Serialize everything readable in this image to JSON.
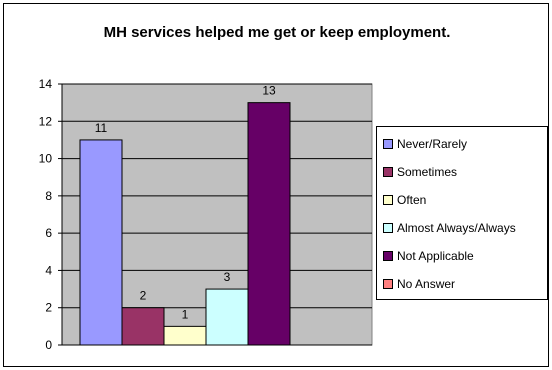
{
  "chart_data": {
    "type": "bar",
    "title": "MH services helped me get or keep employment.",
    "xlabel": "",
    "ylabel": "",
    "ylim": [
      0,
      14
    ],
    "yticks": [
      0,
      2,
      4,
      6,
      8,
      10,
      12,
      14
    ],
    "grid": true,
    "legend_position": "right",
    "categories": [
      "Never/Rarely",
      "Sometimes",
      "Often",
      "Almost Always/Always",
      "Not Applicable",
      "No Answer"
    ],
    "values": [
      11,
      2,
      1,
      3,
      13,
      0
    ],
    "data_labels": [
      "11",
      "2",
      "1",
      "3",
      "13",
      ""
    ],
    "colors": [
      "#9999ff",
      "#993366",
      "#ffffcc",
      "#ccffff",
      "#660066",
      "#ff8080"
    ],
    "plot_background": "#c0c0c0"
  }
}
